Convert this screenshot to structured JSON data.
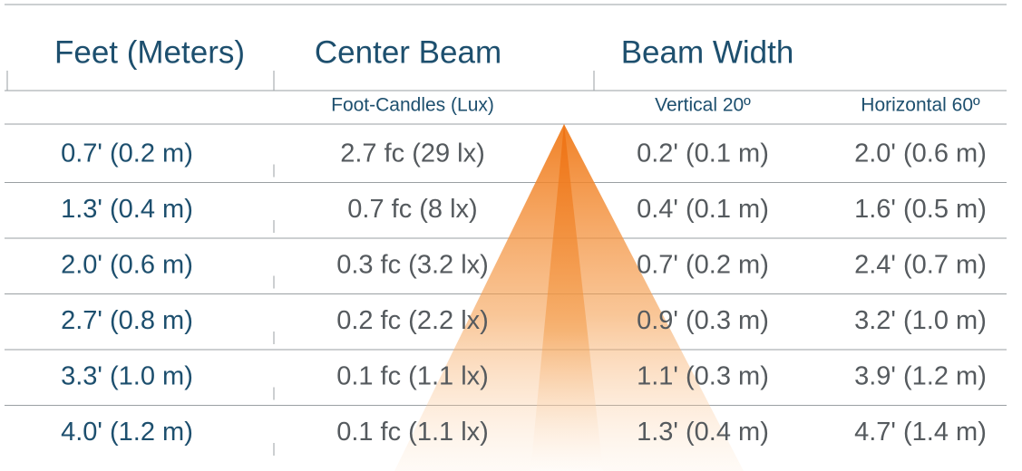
{
  "header": {
    "columns": [
      "Feet (Meters)",
      "Center Beam",
      "Beam Width"
    ]
  },
  "subheader": [
    "Foot-Candles (Lux)",
    "Vertical 20º",
    "Horizontal 60º"
  ],
  "table": {
    "rows": [
      [
        "0.7' (0.2 m)",
        "2.7 fc (29 lx)",
        "0.2' (0.1 m)",
        "2.0' (0.6 m)"
      ],
      [
        "1.3' (0.4 m)",
        "0.7 fc (8 lx)",
        "0.4' (0.1 m)",
        "1.6' (0.5 m)"
      ],
      [
        "2.0' (0.6 m)",
        "0.3 fc (3.2 lx)",
        "0.7' (0.2 m)",
        "2.4' (0.7 m)"
      ],
      [
        "2.7' (0.8 m)",
        "0.2 fc (2.2 lx)",
        "0.9' (0.3 m)",
        "3.2' (1.0 m)"
      ],
      [
        "3.3' (1.0 m)",
        "0.1 fc (1.1 lx)",
        "1.1' (0.3 m)",
        "3.9' (1.2 m)"
      ],
      [
        "4.0' (1.2 m)",
        "0.1 fc (1.1 lx)",
        "1.3' (0.4 m)",
        "4.7' (1.4 m)"
      ]
    ]
  }
}
